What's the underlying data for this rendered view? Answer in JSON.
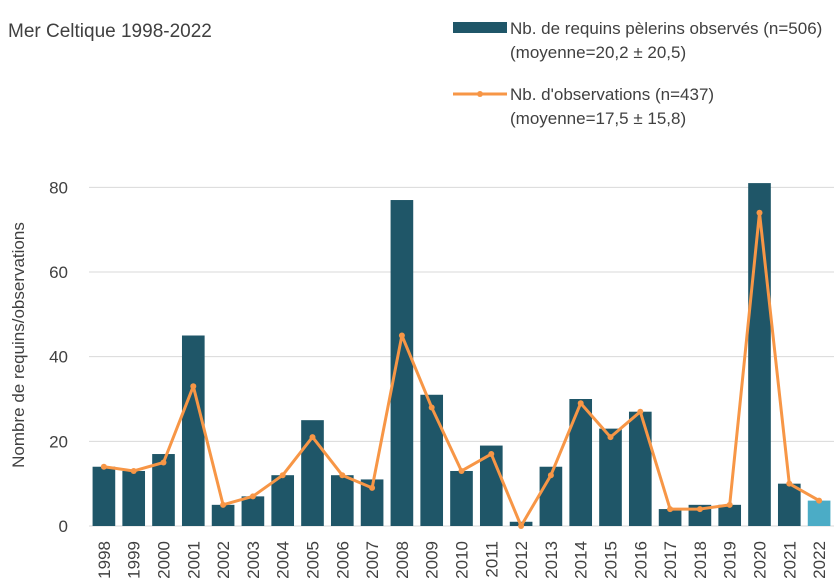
{
  "chart_data": {
    "type": "bar_line",
    "title": "Mer Celtique 1998-2022",
    "y_label": "Nombre de requins/observations",
    "categories": [
      "1998",
      "1999",
      "2000",
      "2001",
      "2002",
      "2003",
      "2004",
      "2005",
      "2006",
      "2007",
      "2008",
      "2009",
      "2010",
      "2011",
      "2012",
      "2013",
      "2014",
      "2015",
      "2016",
      "2017",
      "2018",
      "2019",
      "2020",
      "2021",
      "2022"
    ],
    "series": [
      {
        "name": "Nb. de requins pèlerins observés (n=506) (moyenne=20,2 ± 20,5)",
        "type": "bar",
        "color": "#1f5668",
        "colors": [
          "#1f5668",
          "#1f5668",
          "#1f5668",
          "#1f5668",
          "#1f5668",
          "#1f5668",
          "#1f5668",
          "#1f5668",
          "#1f5668",
          "#1f5668",
          "#1f5668",
          "#1f5668",
          "#1f5668",
          "#1f5668",
          "#1f5668",
          "#1f5668",
          "#1f5668",
          "#1f5668",
          "#1f5668",
          "#1f5668",
          "#1f5668",
          "#1f5668",
          "#1f5668",
          "#1f5668",
          "#4bacc6"
        ],
        "values": [
          14,
          13,
          17,
          45,
          5,
          7,
          12,
          25,
          12,
          11,
          77,
          31,
          13,
          19,
          1,
          14,
          30,
          23,
          27,
          4,
          5,
          5,
          81,
          10,
          6
        ]
      },
      {
        "name": "Nb. d'observations (n=437) (moyenne=17,5 ± 15,8)",
        "type": "line",
        "color": "#f79646",
        "values": [
          14,
          13,
          15,
          33,
          5,
          7,
          12,
          21,
          12,
          9,
          45,
          28,
          13,
          17,
          0,
          12,
          29,
          21,
          27,
          4,
          4,
          5,
          74,
          10,
          6
        ]
      }
    ],
    "ylim": [
      0,
      90
    ],
    "yticks": [
      0,
      20,
      40,
      60,
      80
    ],
    "grid": true
  }
}
